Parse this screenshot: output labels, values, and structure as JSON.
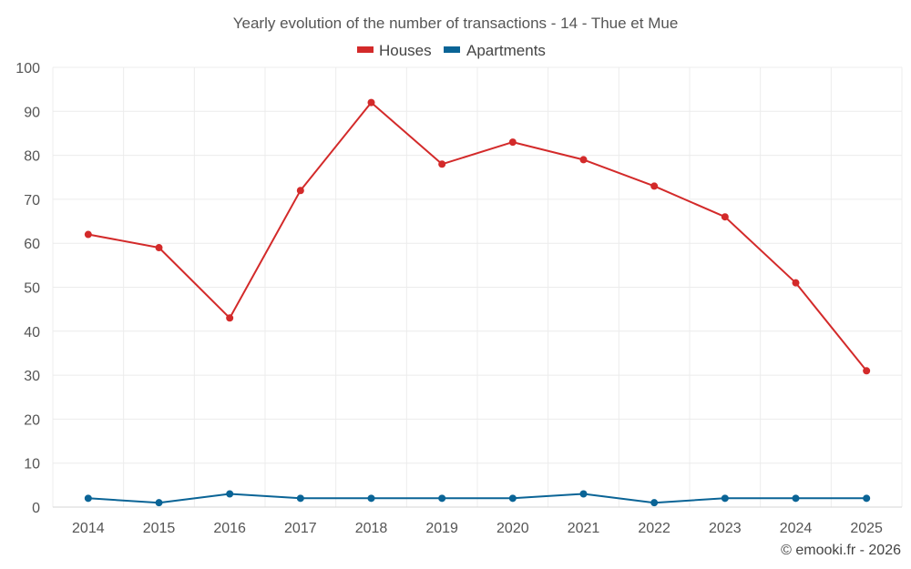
{
  "chart_data": {
    "type": "line",
    "title": "Yearly evolution of the number of transactions - 14 - Thue et Mue",
    "categories": [
      "2014",
      "2015",
      "2016",
      "2017",
      "2018",
      "2019",
      "2020",
      "2021",
      "2022",
      "2023",
      "2024",
      "2025"
    ],
    "series": [
      {
        "name": "Houses",
        "color": "#d32a2a",
        "values": [
          62,
          59,
          43,
          72,
          92,
          78,
          83,
          79,
          73,
          66,
          51,
          31
        ]
      },
      {
        "name": "Apartments",
        "color": "#0a6496",
        "values": [
          2,
          1,
          3,
          2,
          2,
          2,
          2,
          3,
          1,
          2,
          2,
          2
        ]
      }
    ],
    "ylim": [
      0,
      100
    ],
    "yticks": [
      0,
      10,
      20,
      30,
      40,
      50,
      60,
      70,
      80,
      90,
      100
    ],
    "xlabel": "",
    "ylabel": "",
    "grid": true,
    "legend_position": "top-center"
  },
  "credit": "© emooki.fr - 2026"
}
